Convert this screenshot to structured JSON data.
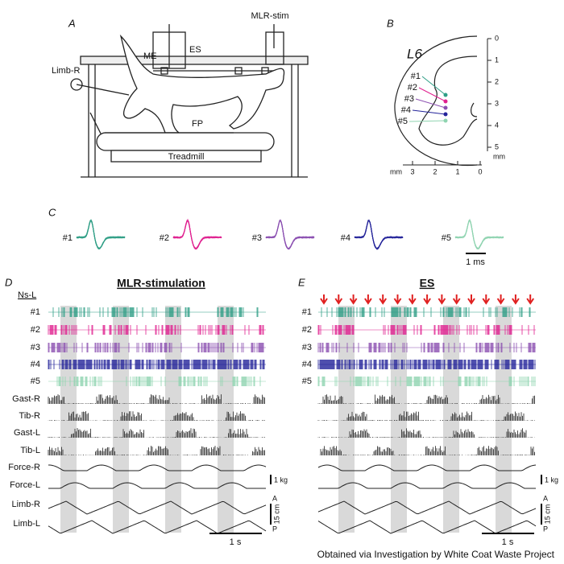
{
  "panel_a": {
    "label": "A",
    "mlr_stim": "MLR-stim",
    "me": "ME",
    "es": "ES",
    "limb_r": "Limb-R",
    "fp": "FP",
    "treadmill": "Treadmill"
  },
  "panel_b": {
    "label": "B",
    "segment": "L6",
    "electrodes": [
      "#1",
      "#2",
      "#3",
      "#4",
      "#5"
    ],
    "depth_ticks": [
      0,
      1,
      2,
      3,
      4,
      5
    ],
    "depth_unit": "mm",
    "width_unit": "mm",
    "width_ticks": [
      3,
      2,
      1,
      0
    ]
  },
  "panel_c": {
    "label": "C",
    "units": [
      {
        "name": "#1",
        "color": "#2e9e86"
      },
      {
        "name": "#2",
        "color": "#e0208f"
      },
      {
        "name": "#3",
        "color": "#8b4fb0"
      },
      {
        "name": "#4",
        "color": "#23239a"
      },
      {
        "name": "#5",
        "color": "#8fd4b0"
      }
    ],
    "scale": "1 ms"
  },
  "panel_d": {
    "label": "D",
    "title": "MLR-stimulation",
    "group": "Ns-L",
    "rows": [
      "#1",
      "#2",
      "#3",
      "#4",
      "#5",
      "Gast-R",
      "Tib-R",
      "Gast-L",
      "Tib-L",
      "Force-R",
      "Force-L",
      "Limb-R",
      "Limb-L"
    ],
    "force_scale": "1 kg",
    "anterior": "A",
    "limb_scale": "15 cm",
    "posterior": "P",
    "time_scale": "1 s"
  },
  "panel_e": {
    "label": "E",
    "title": "ES",
    "force_scale": "1 kg",
    "anterior": "A",
    "limb_scale": "15 cm",
    "posterior": "P",
    "time_scale": "1 s"
  },
  "footer": "Obtained via Investigation by White Coat Waste Project"
}
